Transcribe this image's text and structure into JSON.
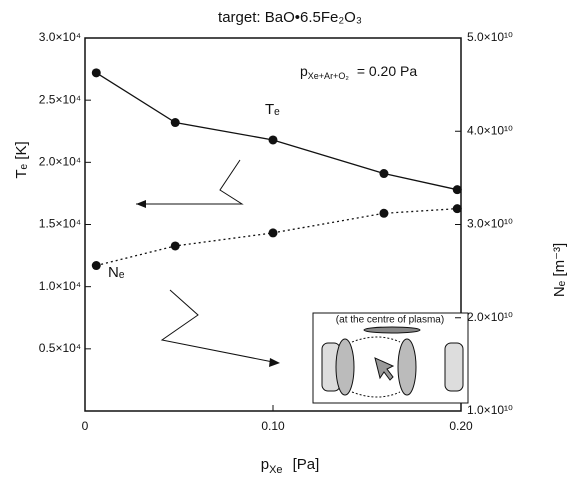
{
  "chart_data": {
    "type": "line",
    "title": "target: BaO•6.5Fe₂O₃",
    "x_label": {
      "base": "p",
      "sub": "Xe",
      "rest": "[Pa]"
    },
    "y_label": "Tₑ [K]",
    "y2_label": "Nₑ [m⁻³]",
    "annotation": {
      "base": "p",
      "sub": "Xe+Ar+O₂",
      "rest": "= 0.20 Pa"
    },
    "inset_label": "(at the centre of plasma)",
    "xlim": [
      0,
      0.2
    ],
    "xticks": [
      0,
      {
        "value": 0.1,
        "label": "0.10"
      },
      {
        "value": 0.2,
        "label": "0.20"
      }
    ],
    "ylim": [
      0,
      30000
    ],
    "yticks": [
      {
        "value": 5000,
        "label": "0.5×10⁴"
      },
      {
        "value": 10000,
        "label": "1.0×10⁴"
      },
      {
        "value": 15000,
        "label": "1.5×10⁴"
      },
      {
        "value": 20000,
        "label": "2.0×10⁴"
      },
      {
        "value": 25000,
        "label": "2.5×10⁴"
      },
      {
        "value": 30000,
        "label": "3.0×10⁴"
      }
    ],
    "y2lim": [
      10000000000,
      50000000000
    ],
    "y2ticks": [
      {
        "value": 10000000000,
        "label": "1.0×10¹⁰"
      },
      {
        "value": 20000000000,
        "label": "2.0×10¹⁰"
      },
      {
        "value": 30000000000,
        "label": "3.0×10¹⁰"
      },
      {
        "value": 40000000000,
        "label": "4.0×10¹⁰"
      },
      {
        "value": 50000000000,
        "label": "5.0×10¹⁰"
      }
    ],
    "x": [
      0.006,
      0.048,
      0.1,
      0.159,
      0.198
    ],
    "series": [
      {
        "name": "Tₑ",
        "color": "#111111",
        "dash": false,
        "values": [
          27200,
          23200,
          21800,
          19100,
          17800
        ]
      },
      {
        "name": "Nₑ",
        "color": "#111111",
        "dash": true,
        "axis": "y2",
        "values": [
          25600000000,
          27700000000,
          29100000000,
          31200000000,
          31700000000
        ]
      }
    ]
  }
}
